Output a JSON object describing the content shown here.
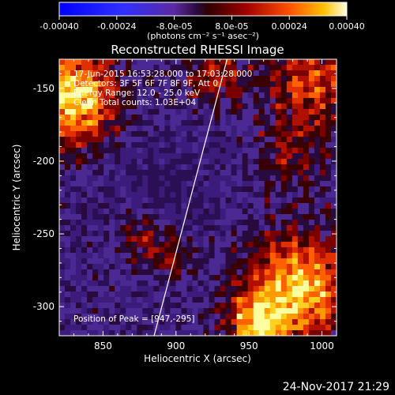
{
  "colorbar": {
    "ticks": [
      "-0.00040",
      "-0.00024",
      "-8.0e-05",
      "8.0e-05",
      "0.00024",
      "0.00040"
    ],
    "units_label": "(photons cm⁻² s⁻¹ asec⁻²)",
    "range": [
      -0.0004,
      0.0004
    ]
  },
  "chart_data": {
    "type": "heatmap",
    "title": "Reconstructed RHESSI Image",
    "xlabel": "Heliocentric X (arcsec)",
    "ylabel": "Heliocentric Y (arcsec)",
    "xlim": [
      820,
      1010
    ],
    "ylim": [
      -320,
      -130
    ],
    "xticks": [
      850,
      900,
      950,
      1000
    ],
    "yticks": [
      -300,
      -250,
      -200,
      -150
    ],
    "info_lines": [
      "17-Jun-2015 16:53:28.000 to 17:03:28.000",
      "Detectors: 3F 5F 6F 7F 8F 9F, Att 0",
      "Energy Range: 12.0 - 25.0 keV",
      "Clean    Total counts: 1.03E+04"
    ],
    "peak_label": "Position of Peak = [947,-295]",
    "peak": [
      947,
      -295
    ],
    "limb_line": [
      [
        885,
        -320
      ],
      [
        935,
        -130
      ]
    ]
  },
  "timestamp": "24-Nov-2017 21:29"
}
